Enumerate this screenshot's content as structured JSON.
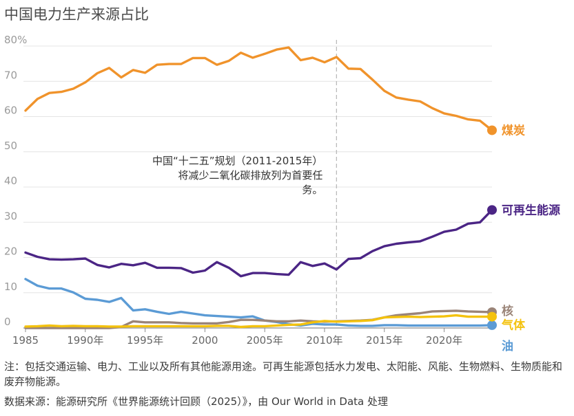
{
  "title": "中国电力生产来源占比",
  "note": "注：包括交通运输、电力、工业以及所有其他能源用途。可再生能源包括水力发电、太阳能、风能、生物燃料、生物质能和废弃物能源。",
  "source": "数据来源：能源研究所《世界能源统计回顾（2025）》，由 Our World in Data 处理",
  "chart_data": {
    "type": "line",
    "title": "中国电力生产来源占比",
    "ylim": [
      0,
      80
    ],
    "xlim": [
      1985,
      2024
    ],
    "y_ticks": [
      0,
      10,
      20,
      30,
      40,
      50,
      60,
      70,
      80
    ],
    "y_tick_labels": [
      "0",
      "10",
      "20",
      "30",
      "40",
      "50",
      "60",
      "70",
      "80%"
    ],
    "x_ticks": [
      1985,
      1990,
      1995,
      2000,
      2005,
      2010,
      2015,
      2020
    ],
    "x_tick_labels": [
      "1985",
      "1990年",
      "1995年",
      "2000",
      "2005年",
      "2010年",
      "2015年",
      "2020年"
    ],
    "grid": true,
    "annotation": {
      "x": 2011,
      "lines": [
        "中国“十二五”规划（2011-2015年）",
        "将减少二氧化碳排放列为首要任",
        "务。"
      ]
    },
    "x": [
      1985,
      1986,
      1987,
      1988,
      1989,
      1990,
      1991,
      1992,
      1993,
      1994,
      1995,
      1996,
      1997,
      1998,
      1999,
      2000,
      2001,
      2002,
      2003,
      2004,
      2005,
      2006,
      2007,
      2008,
      2009,
      2010,
      2011,
      2012,
      2013,
      2014,
      2015,
      2016,
      2017,
      2018,
      2019,
      2020,
      2021,
      2022,
      2023,
      2024
    ],
    "series": [
      {
        "name": "煤炭",
        "color": "#f0932b",
        "values": [
          61.7,
          65.0,
          66.7,
          67.0,
          67.9,
          69.7,
          72.3,
          73.8,
          71.1,
          73.2,
          72.4,
          74.7,
          74.9,
          74.9,
          76.6,
          76.6,
          74.7,
          75.8,
          78.1,
          76.7,
          77.8,
          79.0,
          79.6,
          76.0,
          76.7,
          75.4,
          76.9,
          73.6,
          73.5,
          70.5,
          67.3,
          65.4,
          64.8,
          64.3,
          62.4,
          60.9,
          60.2,
          59.2,
          58.8,
          56.1
        ]
      },
      {
        "name": "可再生能源",
        "color": "#4b2585",
        "values": [
          21.4,
          20.2,
          19.5,
          19.4,
          19.5,
          19.7,
          17.9,
          17.2,
          18.2,
          17.8,
          18.5,
          17.1,
          17.1,
          17.0,
          15.7,
          16.3,
          18.7,
          17.1,
          14.7,
          15.6,
          15.6,
          15.3,
          15.1,
          18.7,
          17.6,
          18.3,
          16.6,
          19.6,
          19.8,
          21.8,
          23.2,
          23.9,
          24.3,
          24.6,
          25.9,
          27.3,
          27.9,
          29.6,
          30.0,
          33.5
        ]
      },
      {
        "name": "油",
        "color": "#5b9bd5",
        "values": [
          13.9,
          12.0,
          11.2,
          11.2,
          10.1,
          8.3,
          8.0,
          7.4,
          8.5,
          5.0,
          5.3,
          4.6,
          4.0,
          4.6,
          4.1,
          3.6,
          3.4,
          3.2,
          3.0,
          3.3,
          2.1,
          1.7,
          1.1,
          0.7,
          1.2,
          1.0,
          1.0,
          0.7,
          0.6,
          0.6,
          0.8,
          0.8,
          0.7,
          0.7,
          0.7,
          0.7,
          0.7,
          0.7,
          0.7,
          0.8
        ]
      },
      {
        "name": "核",
        "color": "#9a8478",
        "values": [
          0.0,
          0.0,
          0.0,
          0.0,
          0.0,
          0.0,
          0.0,
          0.0,
          0.3,
          1.9,
          1.6,
          1.6,
          1.6,
          1.4,
          1.3,
          1.3,
          1.3,
          1.7,
          2.3,
          2.3,
          2.1,
          1.9,
          1.9,
          2.1,
          1.9,
          1.8,
          1.9,
          2.0,
          2.1,
          2.3,
          3.0,
          3.6,
          3.9,
          4.2,
          4.7,
          4.8,
          4.9,
          4.7,
          4.6,
          4.5
        ]
      },
      {
        "name": "气体",
        "color": "#f4c20d",
        "values": [
          0.4,
          0.5,
          0.7,
          0.5,
          0.6,
          0.5,
          0.5,
          0.4,
          0.4,
          0.5,
          0.5,
          0.5,
          0.5,
          0.5,
          0.5,
          0.5,
          0.6,
          0.6,
          0.3,
          0.5,
          0.5,
          0.7,
          0.9,
          1.0,
          1.6,
          2.0,
          1.8,
          1.9,
          2.0,
          2.2,
          3.0,
          3.1,
          3.2,
          3.1,
          3.2,
          3.3,
          3.6,
          3.2,
          3.2,
          3.2
        ]
      }
    ]
  }
}
